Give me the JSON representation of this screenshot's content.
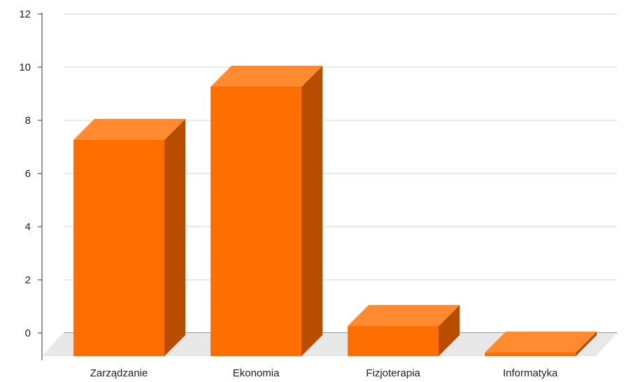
{
  "chart_data": {
    "type": "bar",
    "style": "3d",
    "title": "",
    "xlabel": "",
    "ylabel": "",
    "categories": [
      "Zarządzanie",
      "Ekonomia",
      "Fizjoterapia",
      "Informatyka"
    ],
    "values": [
      8,
      10,
      1,
      0
    ],
    "ylim": [
      0,
      12
    ],
    "yticks": [
      "0",
      "2",
      "4",
      "6",
      "8",
      "10",
      "12"
    ],
    "grid": true,
    "legend": "none",
    "colors": {
      "bar_front": "#ff6f00",
      "bar_top": "#ff8a2f",
      "bar_side": "#b84d00",
      "floor": "#e8e8e8",
      "gridline": "#d4d4d4",
      "axis": "#333333"
    }
  }
}
